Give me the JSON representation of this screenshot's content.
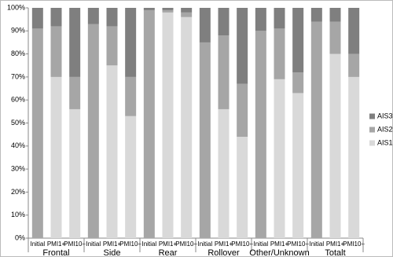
{
  "chart_data": {
    "type": "stacked_bar",
    "categories": [
      "Initial",
      "PMI1+",
      "PMI10+",
      "Initial",
      "PMI1+",
      "PMI10+",
      "Initial",
      "PMI1+",
      "PMI10+",
      "Initial",
      "PMI1+",
      "PMI10+",
      "Initial",
      "PMI1+",
      "PMI10+",
      "Initial",
      "PMI1+",
      "PMI10+"
    ],
    "groups": [
      "Frontal",
      "Side",
      "Rear",
      "Rollover",
      "Other/Unknown",
      "Totalt"
    ],
    "series": [
      {
        "name": "AIS1",
        "color": "#d9d9d9",
        "values": [
          0,
          70,
          56,
          0,
          75,
          53,
          0,
          98,
          96,
          0,
          56,
          44,
          0,
          69,
          63,
          0,
          80,
          70
        ]
      },
      {
        "name": "AIS2",
        "color": "#a6a6a6",
        "values": [
          91,
          22,
          14,
          93,
          17,
          17,
          99,
          1,
          2,
          85,
          32,
          23,
          90,
          22,
          9,
          94,
          14,
          10
        ]
      },
      {
        "name": "AIS3+",
        "color": "#7f7f7f",
        "values": [
          9,
          8,
          30,
          7,
          8,
          30,
          1,
          1,
          2,
          15,
          12,
          33,
          10,
          9,
          28,
          6,
          6,
          20
        ]
      }
    ],
    "ylim": [
      0,
      100
    ],
    "yticks": [
      {
        "value": 0,
        "label": "0%"
      },
      {
        "value": 10,
        "label": "10%"
      },
      {
        "value": 20,
        "label": "20%"
      },
      {
        "value": 30,
        "label": "30%"
      },
      {
        "value": 40,
        "label": "40%"
      },
      {
        "value": 50,
        "label": "50%"
      },
      {
        "value": 60,
        "label": "60%"
      },
      {
        "value": 70,
        "label": "70%"
      },
      {
        "value": 80,
        "label": "80%"
      },
      {
        "value": 90,
        "label": "90%"
      },
      {
        "value": 100,
        "label": "100%"
      }
    ],
    "legend": "right"
  }
}
